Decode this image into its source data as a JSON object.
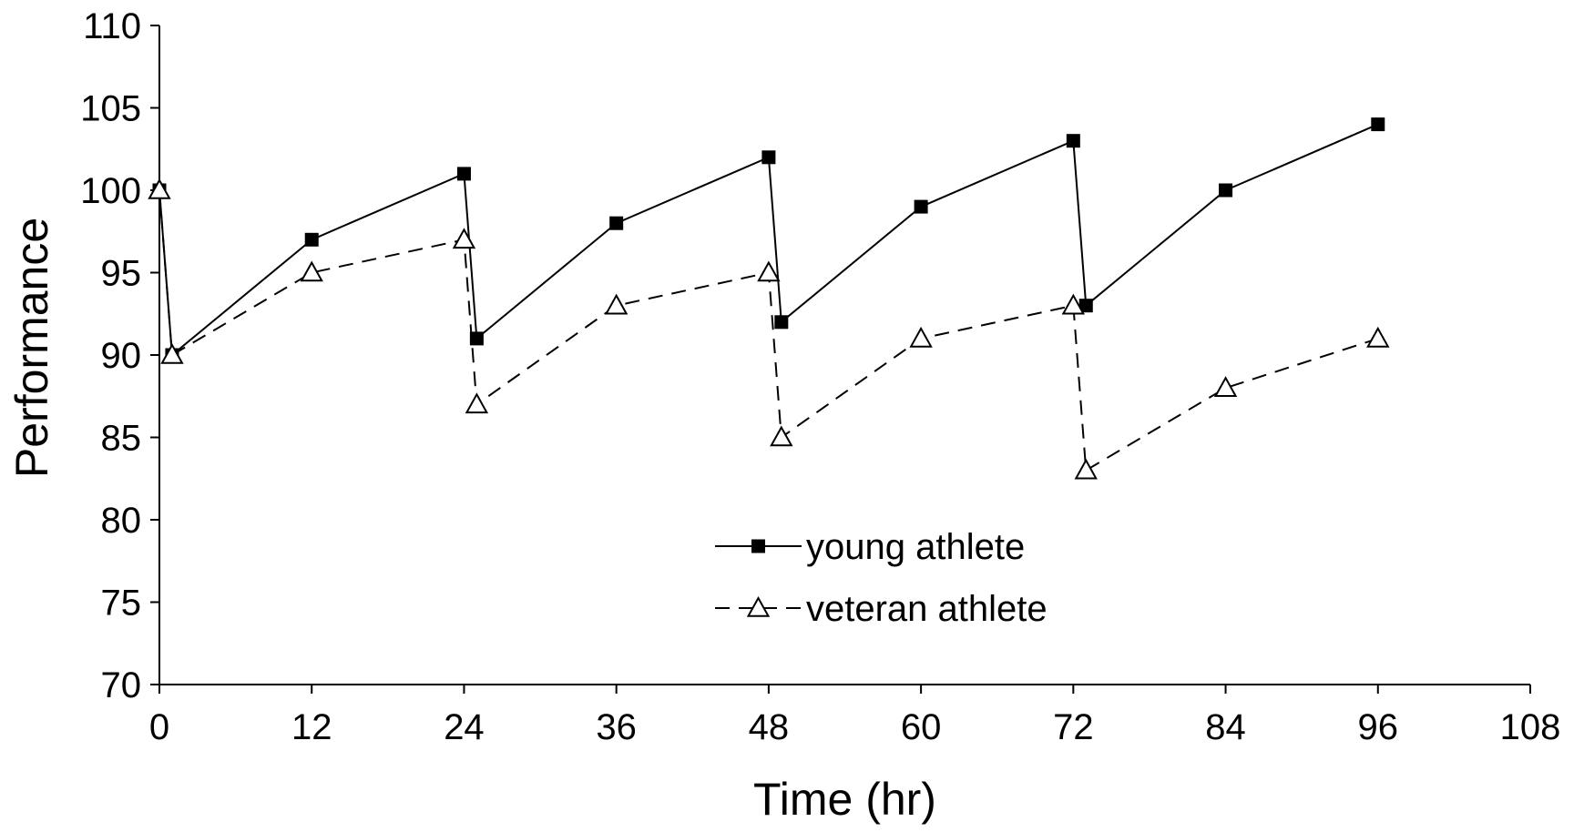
{
  "chart_data": {
    "type": "line",
    "title": "",
    "xlabel": "Time (hr)",
    "ylabel": "Performance",
    "xlim": [
      0,
      108
    ],
    "ylim": [
      70,
      110
    ],
    "xticks": [
      0,
      12,
      24,
      36,
      48,
      60,
      72,
      84,
      96,
      108
    ],
    "yticks": [
      70,
      75,
      80,
      85,
      90,
      95,
      100,
      105,
      110
    ],
    "grid": false,
    "legend_position": "center",
    "series": [
      {
        "name": "young athlete",
        "style": "solid",
        "marker": "filled-square",
        "color": "#000000",
        "x": [
          0,
          1,
          12,
          24,
          25,
          36,
          48,
          49,
          60,
          72,
          73,
          84,
          96
        ],
        "y": [
          100,
          90,
          97,
          101,
          91,
          98,
          102,
          92,
          99,
          103,
          93,
          100,
          104
        ]
      },
      {
        "name": "veteran athlete",
        "style": "dashed",
        "marker": "open-triangle",
        "color": "#000000",
        "x": [
          0,
          1,
          12,
          24,
          25,
          36,
          48,
          49,
          60,
          72,
          73,
          84,
          96
        ],
        "y": [
          100,
          90,
          95,
          97,
          87,
          93,
          95,
          85,
          91,
          93,
          83,
          88,
          91
        ]
      }
    ]
  }
}
